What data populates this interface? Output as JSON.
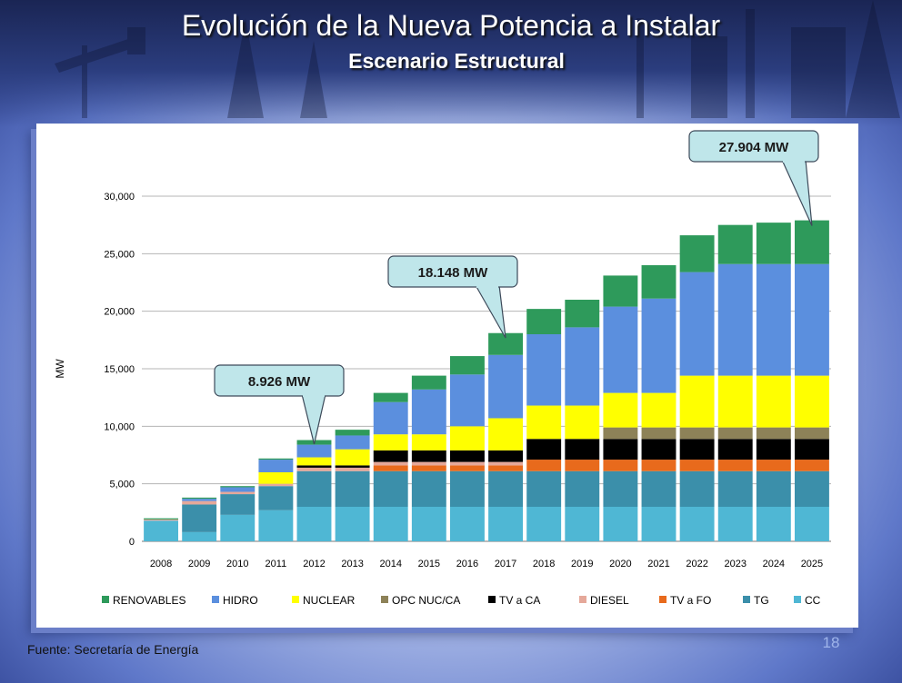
{
  "slide": {
    "title": "Evolución de la Nueva Potencia a Instalar",
    "subtitle": "Escenario Estructural",
    "source": "Fuente: Secretaría de Energía",
    "page_number": "18"
  },
  "chart_data": {
    "type": "bar",
    "stacked": true,
    "ylabel": "MW",
    "ylim": [
      0,
      30000
    ],
    "yticks": [
      "0",
      "5,000",
      "10,000",
      "15,000",
      "20,000",
      "25,000",
      "30,000"
    ],
    "grid": true,
    "legend_position": "bottom",
    "categories": [
      "2008",
      "2009",
      "2010",
      "2011",
      "2012",
      "2013",
      "2014",
      "2015",
      "2016",
      "2017",
      "2018",
      "2019",
      "2020",
      "2021",
      "2022",
      "2023",
      "2024",
      "2025"
    ],
    "series": [
      {
        "name": "CC",
        "color": "#4fb7d4",
        "values": [
          1800,
          800,
          2300,
          2700,
          3000,
          3000,
          3000,
          3000,
          3000,
          3000,
          3000,
          3000,
          3000,
          3000,
          3000,
          3000,
          3000,
          3000
        ]
      },
      {
        "name": "TG",
        "color": "#3b8faa",
        "values": [
          0,
          2400,
          1800,
          2100,
          3100,
          3100,
          3100,
          3100,
          3100,
          3100,
          3100,
          3100,
          3100,
          3100,
          3100,
          3100,
          3100,
          3100
        ]
      },
      {
        "name": "TV a FO",
        "color": "#e86a1c",
        "values": [
          0,
          0,
          0,
          0,
          0,
          0,
          500,
          500,
          500,
          500,
          1000,
          1000,
          1000,
          1000,
          1000,
          1000,
          1000,
          1000
        ]
      },
      {
        "name": "DIESEL",
        "color": "#e5a89a",
        "values": [
          100,
          300,
          200,
          200,
          300,
          300,
          300,
          300,
          300,
          300,
          0,
          0,
          0,
          0,
          0,
          0,
          0,
          0
        ]
      },
      {
        "name": "TV a CA",
        "color": "#000000",
        "values": [
          0,
          0,
          0,
          0,
          200,
          200,
          1000,
          1000,
          1000,
          1000,
          1800,
          1800,
          1800,
          1800,
          1800,
          1800,
          1800,
          1800
        ]
      },
      {
        "name": "OPC NUC/CA",
        "color": "#8d8258",
        "values": [
          0,
          0,
          0,
          0,
          0,
          0,
          0,
          0,
          0,
          0,
          0,
          0,
          1000,
          1000,
          1000,
          1000,
          1000,
          1000
        ]
      },
      {
        "name": "NUCLEAR",
        "color": "#ffff00",
        "values": [
          0,
          0,
          0,
          1000,
          700,
          1400,
          1400,
          1400,
          2100,
          2800,
          2900,
          2900,
          3000,
          3000,
          4500,
          4500,
          4500,
          4500
        ]
      },
      {
        "name": "HIDRO",
        "color": "#5b8fde",
        "values": [
          0,
          200,
          400,
          1100,
          1100,
          1200,
          2800,
          3900,
          4500,
          5500,
          6200,
          6800,
          7500,
          8200,
          9000,
          9700,
          9700,
          9700
        ]
      },
      {
        "name": "RENOVABLES",
        "color": "#2e9a5b",
        "values": [
          100,
          100,
          100,
          100,
          400,
          500,
          800,
          1200,
          1600,
          1900,
          2200,
          2400,
          2700,
          2900,
          3200,
          3400,
          3600,
          3800
        ]
      }
    ],
    "legend_order": [
      "RENOVABLES",
      "HIDRO",
      "NUCLEAR",
      "OPC NUC/CA",
      "TV a CA",
      "DIESEL",
      "TV a FO",
      "TG",
      "CC"
    ],
    "annotations": [
      {
        "text": "8.926 MW",
        "category": "2012",
        "value": 8926
      },
      {
        "text": "18.148 MW",
        "category": "2017",
        "value": 18148
      },
      {
        "text": "27.904 MW",
        "category": "2025",
        "value": 27904
      }
    ]
  }
}
